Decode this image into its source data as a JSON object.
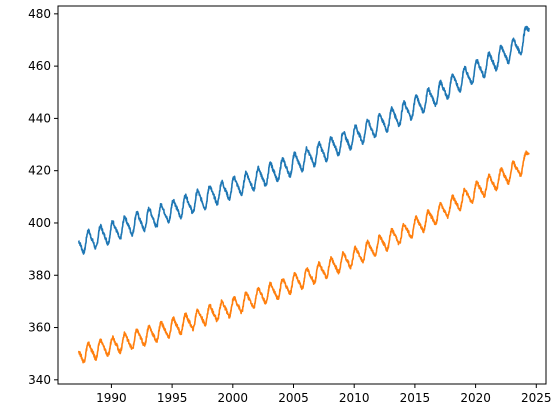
{
  "chart_data": {
    "type": "line",
    "title": "",
    "xlabel": "",
    "ylabel": "",
    "xlim": [
      1985.6,
      2025.8
    ],
    "ylim": [
      338.4,
      483.0
    ],
    "grid": false,
    "legend": "none",
    "x_ticks": [
      1990,
      1995,
      2000,
      2005,
      2010,
      2015,
      2020,
      2025
    ],
    "y_ticks": [
      340,
      360,
      380,
      400,
      420,
      440,
      460,
      480
    ],
    "x_tick_labels": [
      "1990",
      "1995",
      "2000",
      "2005",
      "2010",
      "2015",
      "2020",
      "2025"
    ],
    "y_tick_labels": [
      "340",
      "360",
      "380",
      "400",
      "420",
      "440",
      "460",
      "480"
    ],
    "series": [
      {
        "color": "#1f77b4",
        "seasonal_amplitude": 3.5,
        "x": [
          1987.3,
          1988,
          1990,
          1992,
          1994,
          1996,
          1998,
          2000,
          2002,
          2004,
          2006,
          2008,
          2010,
          2012,
          2014,
          2016,
          2018,
          2020,
          2022,
          2023,
          2024,
          2024.4
        ],
        "y": [
          392,
          393,
          396.5,
          400,
          403,
          406.5,
          410,
          413.5,
          417,
          420.5,
          424.5,
          428.5,
          433,
          437.5,
          442,
          447,
          452.5,
          458,
          463.5,
          466,
          469.5,
          474
        ]
      },
      {
        "color": "#ff7f0e",
        "seasonal_amplitude": 3.0,
        "x": [
          1987.3,
          1988,
          1990,
          1992,
          1994,
          1996,
          1998,
          2000,
          2002,
          2004,
          2006,
          2008,
          2010,
          2012,
          2014,
          2016,
          2018,
          2020,
          2022,
          2023,
          2024,
          2024.4
        ],
        "y": [
          350,
          350.5,
          353,
          355.5,
          358.5,
          361.5,
          365,
          368,
          371.5,
          375,
          379,
          383,
          387,
          391.5,
          396,
          401,
          406.5,
          412,
          417,
          419.5,
          422.5,
          426
        ]
      }
    ]
  }
}
